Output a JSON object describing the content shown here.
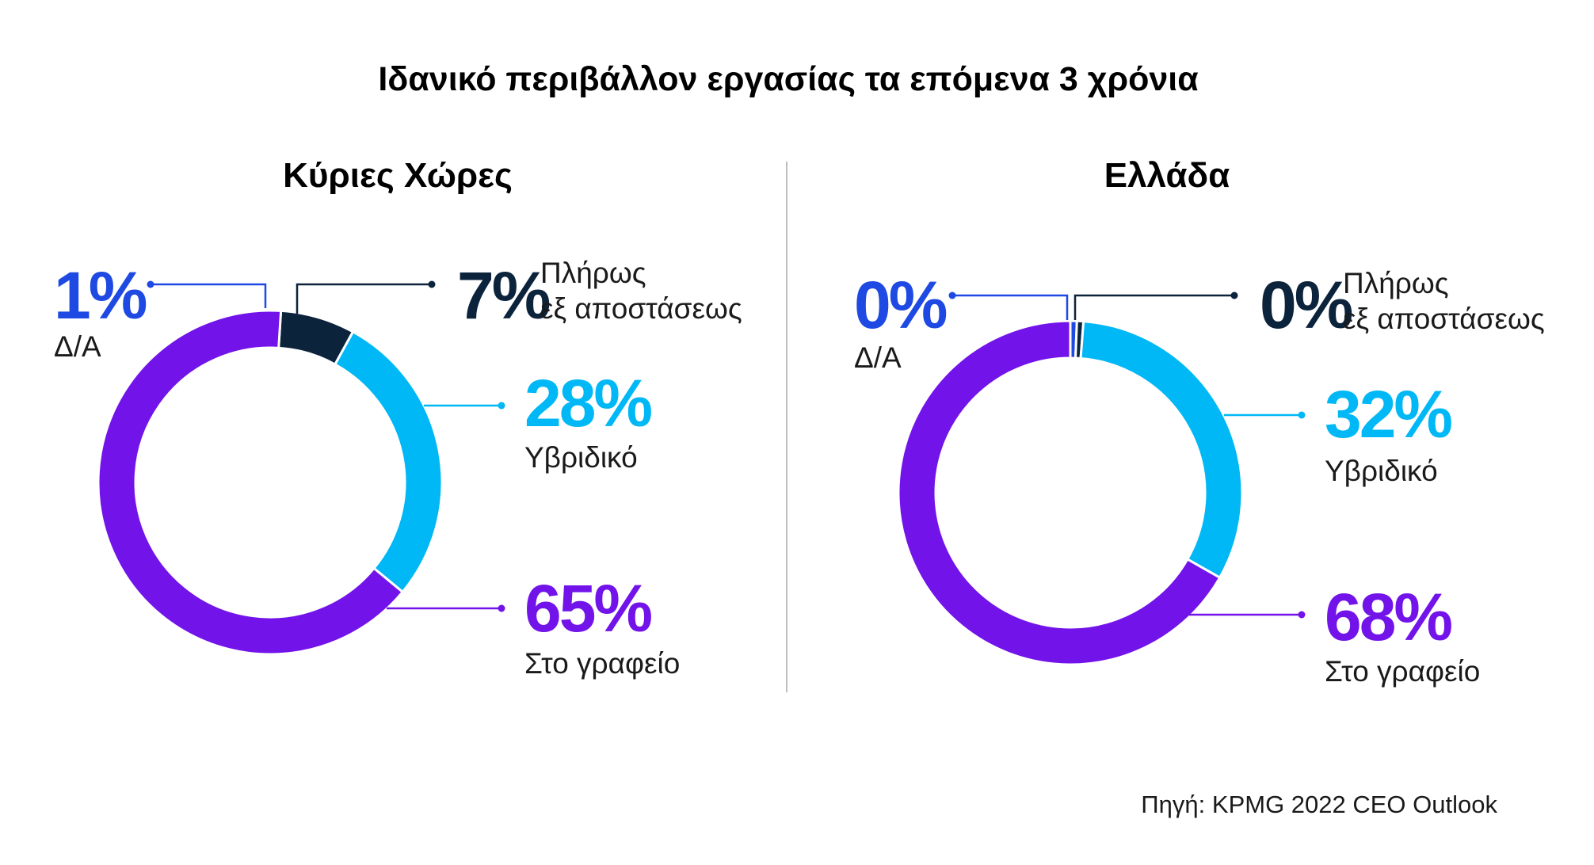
{
  "title": "Ιδανικό περιβάλλον εργασίας τα επόμενα 3 χρόνια",
  "source": "Πηγή: KPMG 2022 CEO Outlook",
  "colors": {
    "na": "#1e49e2",
    "remote": "#0c233c",
    "hybrid": "#00b8f5",
    "office": "#7213ea",
    "divider": "#bdbdbd",
    "text": "#1a1a1a"
  },
  "chart_data": [
    {
      "type": "pie",
      "title": "Κύριες Χώρες",
      "series": [
        {
          "key": "na",
          "value": 1,
          "value_label": "1%",
          "label_lines": [
            "Δ/Α"
          ]
        },
        {
          "key": "remote",
          "value": 7,
          "value_label": "7%",
          "label_lines": [
            "Πλήρως",
            "εξ αποστάσεως"
          ]
        },
        {
          "key": "hybrid",
          "value": 28,
          "value_label": "28%",
          "label_lines": [
            "Υβριδικό"
          ]
        },
        {
          "key": "office",
          "value": 65,
          "value_label": "65%",
          "label_lines": [
            "Στο γραφείο"
          ]
        }
      ]
    },
    {
      "type": "pie",
      "title": "Ελλάδα",
      "series": [
        {
          "key": "na",
          "value": 0,
          "value_label": "0%",
          "label_lines": [
            "Δ/Α"
          ]
        },
        {
          "key": "remote",
          "value": 0,
          "value_label": "0%",
          "label_lines": [
            "Πλήρως",
            "εξ αποστάσεως"
          ]
        },
        {
          "key": "hybrid",
          "value": 32,
          "value_label": "32%",
          "label_lines": [
            "Υβριδικό"
          ]
        },
        {
          "key": "office",
          "value": 68,
          "value_label": "68%",
          "label_lines": [
            "Στο γραφείο"
          ]
        }
      ]
    }
  ]
}
